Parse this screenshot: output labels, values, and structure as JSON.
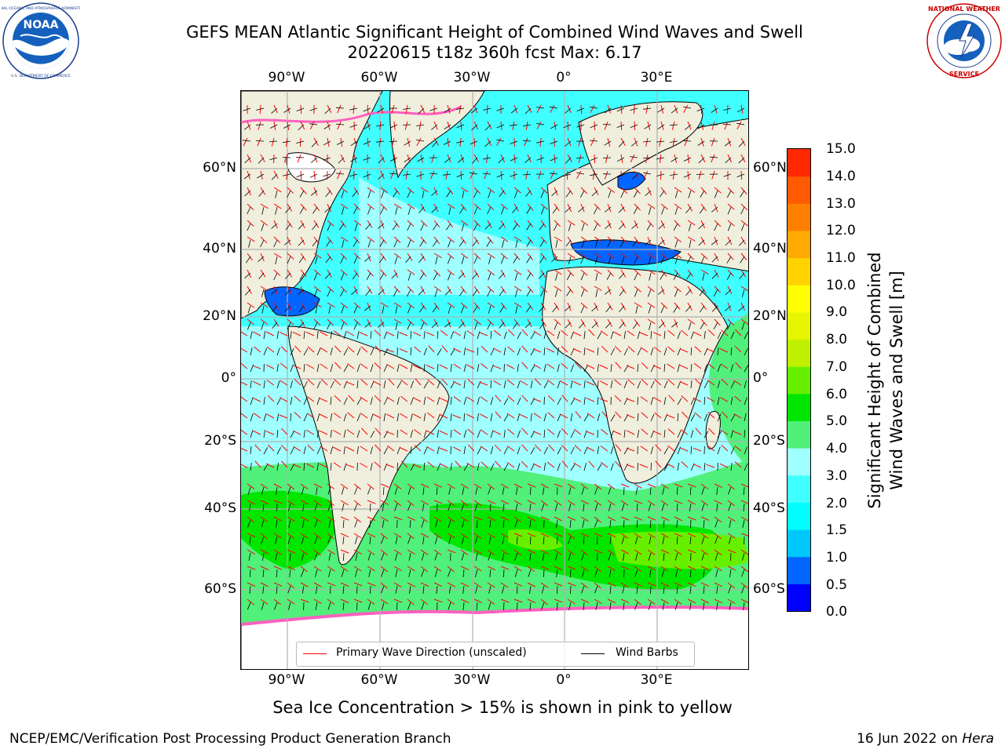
{
  "header": {
    "title_line1": "GEFS MEAN Atlantic Significant Height of Combined Wind Waves and Swell",
    "title_line2": "20220615 t18z 360h fcst    Max: 6.17"
  },
  "logos": {
    "noara_text": "NOAA",
    "noaa_ring_text": "NATIONAL OCEANIC AND ATMOSPHERIC ADMINISTRATION · U.S. DEPARTMENT OF COMMERCE",
    "nws_ring_text": "NATIONAL WEATHER SERVICE"
  },
  "map": {
    "lon_labels": [
      "90°W",
      "60°W",
      "30°W",
      "0°",
      "30°E"
    ],
    "lat_labels": [
      "60°N",
      "40°N",
      "20°N",
      "0°",
      "20°S",
      "40°S",
      "60°S"
    ],
    "legend": {
      "wave_label": "Primary Wave Direction (unscaled)",
      "barb_label": "Wind Barbs",
      "wave_color": "#ff0000",
      "barb_color": "#000000"
    },
    "colors": {
      "land": "#f0eedc",
      "ice": "#ffffff",
      "grid": "#b0b0b0"
    }
  },
  "colorbar": {
    "title_line1": "Significant Height of Combined",
    "title_line2": "Wind Waves and Swell [m]",
    "tick_labels": [
      "15.0",
      "14.0",
      "13.0",
      "12.0",
      "11.0",
      "10.0",
      "9.0",
      "8.0",
      "7.0",
      "6.0",
      "5.0",
      "4.0",
      "3.0",
      "2.0",
      "1.5",
      "1.0",
      "0.5",
      "0.0"
    ],
    "colors_bottom_to_top": [
      "#0000ff",
      "#0066ff",
      "#00c8ff",
      "#00ffff",
      "#40ffff",
      "#a0ffff",
      "#50f07a",
      "#00e600",
      "#66f000",
      "#c0f000",
      "#e6f500",
      "#ffff00",
      "#ffd200",
      "#ffaa00",
      "#ff8000",
      "#ff5a00",
      "#ff2800"
    ]
  },
  "footer": {
    "sea_ice_note": "Sea Ice Concentration > 15% is shown in pink to yellow",
    "left": "NCEP/EMC/Verification Post Processing Product Generation Branch",
    "right_prefix": "16 Jun 2022 on ",
    "right_host": "Hera"
  }
}
